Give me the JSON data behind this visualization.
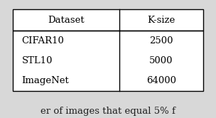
{
  "headers": [
    "Dataset",
    "K-size"
  ],
  "rows": [
    [
      "CIFAR10",
      "2500"
    ],
    [
      "STL10",
      "5000"
    ],
    [
      "ImageNet",
      "64000"
    ]
  ],
  "caption": "er of images that equal 5% f",
  "bg_color": "#d8d8d8",
  "table_bg": "#ffffff",
  "header_align": "center",
  "row_align": "left",
  "font_size": 9.5,
  "caption_font_size": 9.5,
  "caption_color": "#222222"
}
